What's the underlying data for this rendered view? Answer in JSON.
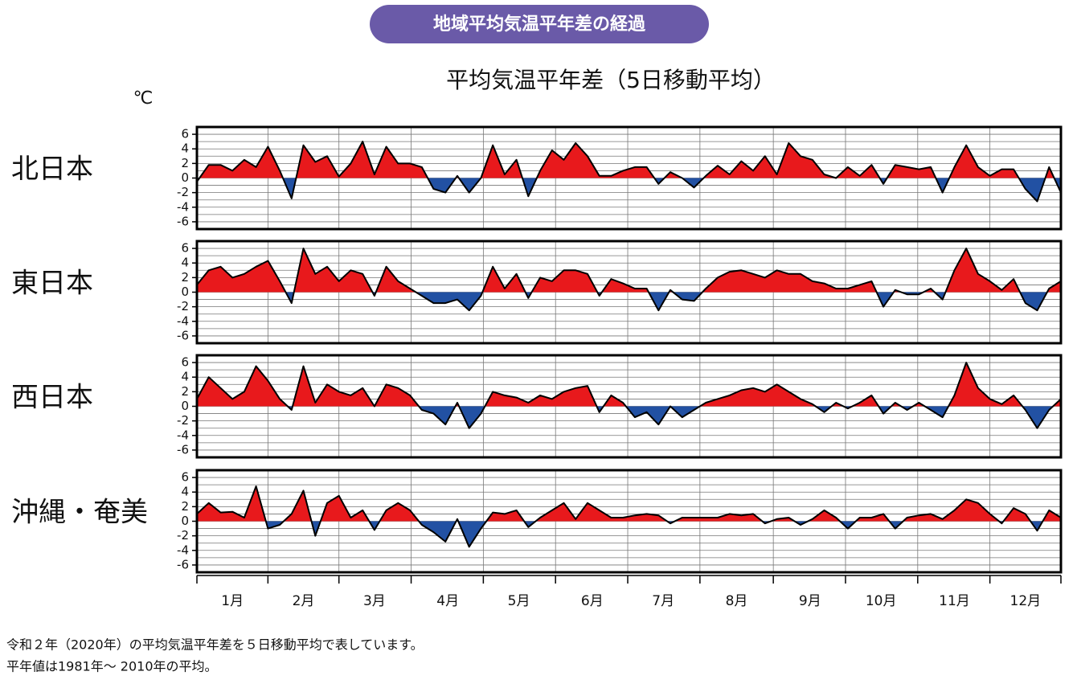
{
  "header": {
    "title": "地域平均気温平年差の経過"
  },
  "subtitle": "平均気温平年差（5日移動平均）",
  "unit": "℃",
  "footnotes": [
    "令和２年（2020年）の平均気温平年差を５日移動平均で表しています。",
    "平年値は1981年〜 2010年の平均。"
  ],
  "chart_data": [
    {
      "type": "area",
      "title": "北日本",
      "positive_color": "#e8191c",
      "negative_color": "#2251a3",
      "grid": true,
      "xlim": [
        1,
        366
      ],
      "ylim": [
        -7,
        7
      ],
      "yticks": [
        -6,
        -4,
        -2,
        0,
        2,
        4,
        6
      ],
      "yminorticks": [
        -5,
        -3,
        -1,
        1,
        3,
        5
      ],
      "x": [
        1,
        6,
        11,
        16,
        21,
        26,
        31,
        36,
        41,
        46,
        51,
        56,
        61,
        66,
        71,
        76,
        81,
        86,
        91,
        96,
        101,
        106,
        111,
        116,
        121,
        126,
        131,
        136,
        141,
        146,
        151,
        156,
        161,
        166,
        171,
        176,
        181,
        186,
        191,
        196,
        201,
        206,
        211,
        216,
        221,
        226,
        231,
        236,
        241,
        246,
        251,
        256,
        261,
        266,
        271,
        276,
        281,
        286,
        291,
        296,
        301,
        306,
        311,
        316,
        321,
        326,
        331,
        336,
        341,
        346,
        351,
        356,
        361,
        366
      ],
      "values": [
        -0.5,
        1.8,
        1.8,
        1,
        2.5,
        1.5,
        4.3,
        1,
        -2.8,
        4.5,
        2.2,
        3,
        0.2,
        2,
        5,
        0.5,
        4.3,
        2,
        2,
        1.5,
        -1.5,
        -2,
        0.3,
        -2,
        0,
        4.5,
        0.5,
        2.5,
        -2.5,
        1,
        3.8,
        2.5,
        4.8,
        3,
        0.3,
        0.3,
        1,
        1.5,
        1.5,
        -0.8,
        0.8,
        0,
        -1.3,
        0.3,
        1.7,
        0.5,
        2.3,
        1,
        3,
        0.5,
        4.8,
        3,
        2.5,
        0.5,
        0,
        1.5,
        0.3,
        1.8,
        -0.8,
        1.8,
        1.5,
        1.2,
        1.5,
        -2,
        1.5,
        4.5,
        1.5,
        0.3,
        1.2,
        1.2,
        -1.5,
        -3.2,
        1.5,
        -2
      ]
    },
    {
      "type": "area",
      "title": "東日本",
      "positive_color": "#e8191c",
      "negative_color": "#2251a3",
      "grid": true,
      "xlim": [
        1,
        366
      ],
      "ylim": [
        -7,
        7
      ],
      "yticks": [
        -6,
        -4,
        -2,
        0,
        2,
        4,
        6
      ],
      "yminorticks": [
        -5,
        -3,
        -1,
        1,
        3,
        5
      ],
      "x": [
        1,
        6,
        11,
        16,
        21,
        26,
        31,
        36,
        41,
        46,
        51,
        56,
        61,
        66,
        71,
        76,
        81,
        86,
        91,
        96,
        101,
        106,
        111,
        116,
        121,
        126,
        131,
        136,
        141,
        146,
        151,
        156,
        161,
        166,
        171,
        176,
        181,
        186,
        191,
        196,
        201,
        206,
        211,
        216,
        221,
        226,
        231,
        236,
        241,
        246,
        251,
        256,
        261,
        266,
        271,
        276,
        281,
        286,
        291,
        296,
        301,
        306,
        311,
        316,
        321,
        326,
        331,
        336,
        341,
        346,
        351,
        356,
        361,
        366
      ],
      "values": [
        1,
        3,
        3.5,
        2,
        2.5,
        3.5,
        4.3,
        1.5,
        -1.5,
        6,
        2.5,
        3.5,
        1.5,
        3,
        2.5,
        -0.5,
        3.5,
        1.5,
        0.5,
        -0.5,
        -1.5,
        -1.5,
        -1,
        -2.5,
        -0.5,
        3.5,
        0.5,
        2.5,
        -0.8,
        2,
        1.5,
        3,
        3,
        2.5,
        -0.5,
        1.8,
        1.2,
        0.5,
        0.5,
        -2.5,
        0.3,
        -1,
        -1.2,
        0.5,
        2,
        2.8,
        3,
        2.5,
        2,
        3,
        2.5,
        2.5,
        1.5,
        1.2,
        0.5,
        0.5,
        1,
        1.5,
        -2,
        0.3,
        -0.3,
        -0.3,
        0.5,
        -1,
        3,
        6,
        2.5,
        1.5,
        0.3,
        1.8,
        -1.5,
        -2.5,
        0.5,
        1.5
      ]
    },
    {
      "type": "area",
      "title": "西日本",
      "positive_color": "#e8191c",
      "negative_color": "#2251a3",
      "grid": true,
      "xlim": [
        1,
        366
      ],
      "ylim": [
        -7,
        7
      ],
      "yticks": [
        -6,
        -4,
        -2,
        0,
        2,
        4,
        6
      ],
      "yminorticks": [
        -5,
        -3,
        -1,
        1,
        3,
        5
      ],
      "x": [
        1,
        6,
        11,
        16,
        21,
        26,
        31,
        36,
        41,
        46,
        51,
        56,
        61,
        66,
        71,
        76,
        81,
        86,
        91,
        96,
        101,
        106,
        111,
        116,
        121,
        126,
        131,
        136,
        141,
        146,
        151,
        156,
        161,
        166,
        171,
        176,
        181,
        186,
        191,
        196,
        201,
        206,
        211,
        216,
        221,
        226,
        231,
        236,
        241,
        246,
        251,
        256,
        261,
        266,
        271,
        276,
        281,
        286,
        291,
        296,
        301,
        306,
        311,
        316,
        321,
        326,
        331,
        336,
        341,
        346,
        351,
        356,
        361,
        366
      ],
      "values": [
        1,
        4,
        2.5,
        1,
        2,
        5.5,
        3.5,
        1,
        -0.5,
        5.5,
        0.5,
        3,
        2,
        1.5,
        2.5,
        0,
        3,
        2.5,
        1.5,
        -0.5,
        -1,
        -2.5,
        0.5,
        -3,
        -1,
        2,
        1.5,
        1.2,
        0.5,
        1.5,
        1,
        2,
        2.5,
        2.8,
        -0.8,
        1.5,
        0.5,
        -1.5,
        -0.8,
        -2.5,
        0,
        -1.5,
        -0.5,
        0.5,
        1,
        1.5,
        2.2,
        2.5,
        2,
        3,
        2,
        1,
        0.3,
        -0.8,
        0.5,
        -0.3,
        0.5,
        1.5,
        -1,
        0.5,
        -0.5,
        0.5,
        -0.5,
        -1.5,
        1.5,
        6,
        2.5,
        1,
        0.3,
        1.5,
        -0.5,
        -3,
        -0.5,
        1
      ]
    },
    {
      "type": "area",
      "title": "沖縄・奄美",
      "positive_color": "#e8191c",
      "negative_color": "#2251a3",
      "grid": true,
      "xlim": [
        1,
        366
      ],
      "ylim": [
        -7,
        7
      ],
      "yticks": [
        -6,
        -4,
        -2,
        0,
        2,
        4,
        6
      ],
      "yminorticks": [
        -5,
        -3,
        -1,
        1,
        3,
        5
      ],
      "xticks": [
        {
          "value": 16,
          "label": "1月"
        },
        {
          "value": 46,
          "label": "2月"
        },
        {
          "value": 76,
          "label": "3月"
        },
        {
          "value": 107,
          "label": "4月"
        },
        {
          "value": 137,
          "label": "5月"
        },
        {
          "value": 168,
          "label": "6月"
        },
        {
          "value": 198,
          "label": "7月"
        },
        {
          "value": 229,
          "label": "8月"
        },
        {
          "value": 260,
          "label": "9月"
        },
        {
          "value": 290,
          "label": "10月"
        },
        {
          "value": 321,
          "label": "11月"
        },
        {
          "value": 351,
          "label": "12月"
        }
      ],
      "x": [
        1,
        6,
        11,
        16,
        21,
        26,
        31,
        36,
        41,
        46,
        51,
        56,
        61,
        66,
        71,
        76,
        81,
        86,
        91,
        96,
        101,
        106,
        111,
        116,
        121,
        126,
        131,
        136,
        141,
        146,
        151,
        156,
        161,
        166,
        171,
        176,
        181,
        186,
        191,
        196,
        201,
        206,
        211,
        216,
        221,
        226,
        231,
        236,
        241,
        246,
        251,
        256,
        261,
        266,
        271,
        276,
        281,
        286,
        291,
        296,
        301,
        306,
        311,
        316,
        321,
        326,
        331,
        336,
        341,
        346,
        351,
        356,
        361,
        366
      ],
      "values": [
        1,
        2.5,
        1.2,
        1.3,
        0.5,
        4.8,
        -1,
        -0.5,
        1,
        4.2,
        -2,
        2.5,
        3.5,
        0.5,
        1.5,
        -1.2,
        1.5,
        2.5,
        1.5,
        -0.5,
        -1.5,
        -2.8,
        0.3,
        -3.5,
        -1,
        1.2,
        1,
        1.5,
        -0.8,
        0.5,
        1.5,
        2.5,
        0.3,
        2.5,
        1.5,
        0.5,
        0.5,
        0.8,
        1,
        0.8,
        -0.3,
        0.5,
        0.5,
        0.5,
        0.5,
        1,
        0.8,
        1,
        -0.3,
        0.3,
        0.5,
        -0.5,
        0.3,
        1.5,
        0.5,
        -1,
        0.5,
        0.5,
        1,
        -1,
        0.5,
        0.8,
        1,
        0.3,
        1.5,
        3,
        2.5,
        1,
        -0.3,
        1.8,
        1,
        -1.3,
        1.5,
        0.5
      ]
    }
  ]
}
